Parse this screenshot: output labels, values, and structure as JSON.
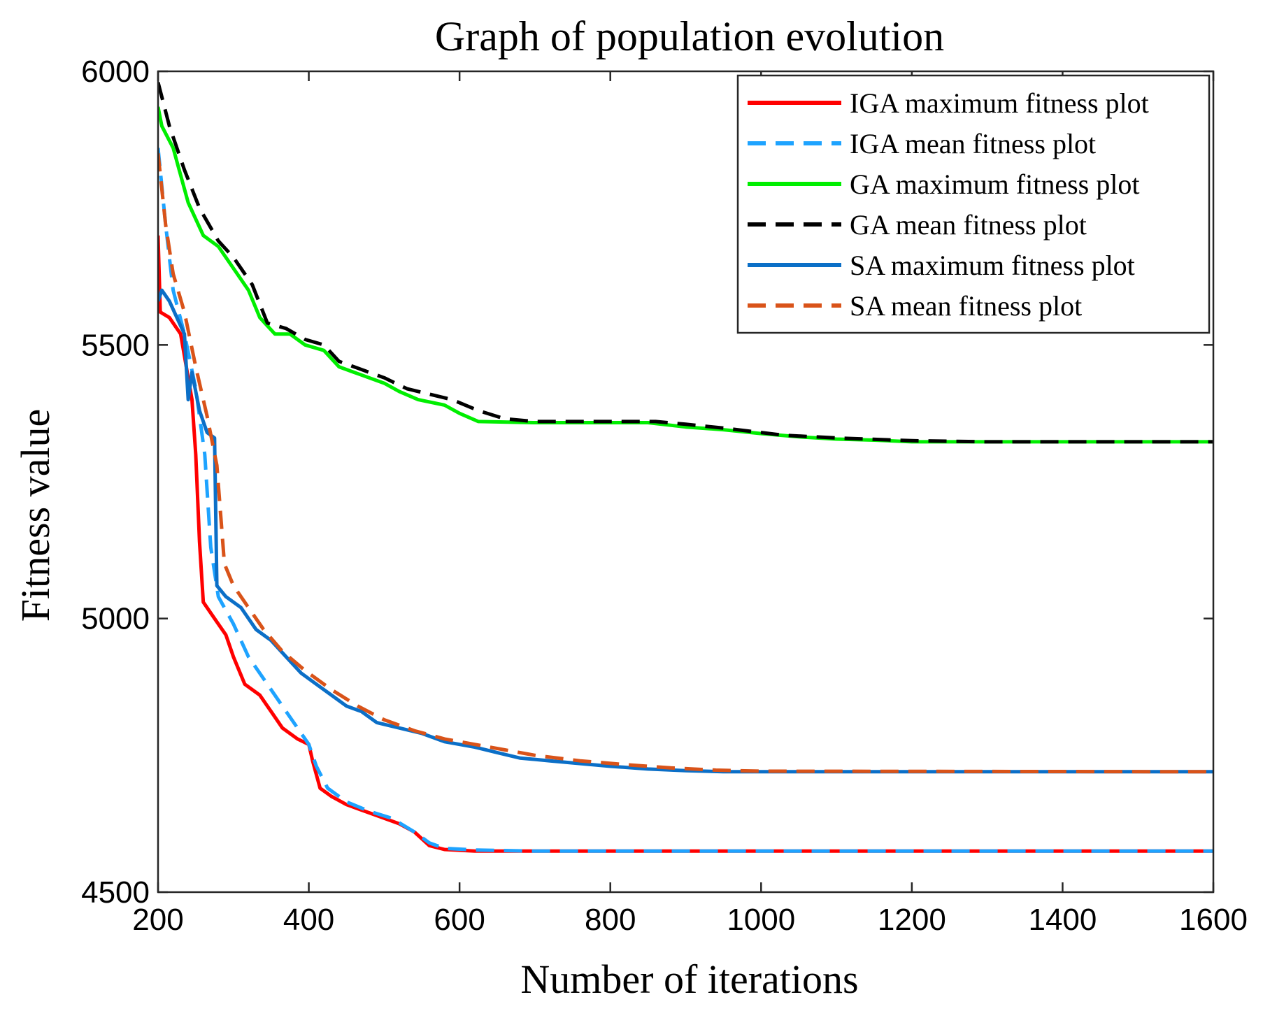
{
  "chart_data": {
    "type": "line",
    "title": "Graph of population evolution",
    "xlabel": "Number of iterations",
    "ylabel": "Fitness value",
    "xlim": [
      200,
      1600
    ],
    "ylim": [
      4500,
      6000
    ],
    "xticks": [
      200,
      400,
      600,
      800,
      1000,
      1200,
      1400,
      1600
    ],
    "yticks": [
      4500,
      5000,
      5500,
      6000
    ],
    "xtick_labels": [
      "200",
      "400",
      "600",
      "800",
      "1000",
      "1200",
      "1400",
      "1600"
    ],
    "ytick_labels": [
      "4500",
      "5000",
      "5500",
      "6000"
    ],
    "grid": false,
    "legend_position": "top-right",
    "series": [
      {
        "name": "IGA maximum fitness plot",
        "color": "#ff0000",
        "style": "solid",
        "points": [
          [
            200,
            5700
          ],
          [
            203,
            5560
          ],
          [
            215,
            5550
          ],
          [
            230,
            5520
          ],
          [
            245,
            5400
          ],
          [
            250,
            5300
          ],
          [
            255,
            5140
          ],
          [
            260,
            5030
          ],
          [
            275,
            5000
          ],
          [
            290,
            4970
          ],
          [
            300,
            4930
          ],
          [
            315,
            4880
          ],
          [
            335,
            4860
          ],
          [
            350,
            4830
          ],
          [
            365,
            4800
          ],
          [
            385,
            4780
          ],
          [
            400,
            4770
          ],
          [
            405,
            4740
          ],
          [
            415,
            4690
          ],
          [
            430,
            4675
          ],
          [
            450,
            4660
          ],
          [
            470,
            4650
          ],
          [
            490,
            4640
          ],
          [
            520,
            4625
          ],
          [
            540,
            4610
          ],
          [
            560,
            4585
          ],
          [
            580,
            4578
          ],
          [
            620,
            4575
          ],
          [
            700,
            4575
          ],
          [
            1000,
            4575
          ],
          [
            1600,
            4575
          ]
        ]
      },
      {
        "name": "IGA mean fitness plot",
        "color": "#1ea3ff",
        "style": "dashed",
        "points": [
          [
            200,
            5860
          ],
          [
            210,
            5720
          ],
          [
            220,
            5600
          ],
          [
            235,
            5520
          ],
          [
            250,
            5420
          ],
          [
            262,
            5300
          ],
          [
            270,
            5130
          ],
          [
            280,
            5040
          ],
          [
            300,
            4990
          ],
          [
            320,
            4930
          ],
          [
            345,
            4880
          ],
          [
            365,
            4840
          ],
          [
            385,
            4800
          ],
          [
            400,
            4770
          ],
          [
            410,
            4730
          ],
          [
            425,
            4690
          ],
          [
            450,
            4665
          ],
          [
            480,
            4648
          ],
          [
            510,
            4635
          ],
          [
            540,
            4610
          ],
          [
            560,
            4590
          ],
          [
            580,
            4580
          ],
          [
            620,
            4577
          ],
          [
            700,
            4575
          ],
          [
            1600,
            4575
          ]
        ]
      },
      {
        "name": "GA maximum fitness plot",
        "color": "#00ee00",
        "style": "solid",
        "points": [
          [
            200,
            5935
          ],
          [
            205,
            5900
          ],
          [
            220,
            5860
          ],
          [
            240,
            5760
          ],
          [
            260,
            5700
          ],
          [
            280,
            5680
          ],
          [
            300,
            5640
          ],
          [
            320,
            5600
          ],
          [
            335,
            5550
          ],
          [
            355,
            5520
          ],
          [
            375,
            5520
          ],
          [
            395,
            5500
          ],
          [
            420,
            5490
          ],
          [
            440,
            5460
          ],
          [
            460,
            5450
          ],
          [
            480,
            5440
          ],
          [
            500,
            5430
          ],
          [
            520,
            5415
          ],
          [
            545,
            5400
          ],
          [
            580,
            5390
          ],
          [
            600,
            5375
          ],
          [
            625,
            5360
          ],
          [
            700,
            5358
          ],
          [
            800,
            5358
          ],
          [
            850,
            5358
          ],
          [
            900,
            5350
          ],
          [
            950,
            5345
          ],
          [
            1000,
            5338
          ],
          [
            1050,
            5332
          ],
          [
            1100,
            5328
          ],
          [
            1150,
            5326
          ],
          [
            1200,
            5323
          ],
          [
            1300,
            5323
          ],
          [
            1600,
            5323
          ]
        ]
      },
      {
        "name": "GA mean fitness plot",
        "color": "#000000",
        "style": "dashed",
        "points": [
          [
            200,
            5980
          ],
          [
            215,
            5900
          ],
          [
            235,
            5820
          ],
          [
            255,
            5750
          ],
          [
            280,
            5690
          ],
          [
            300,
            5660
          ],
          [
            325,
            5610
          ],
          [
            345,
            5540
          ],
          [
            370,
            5530
          ],
          [
            395,
            5510
          ],
          [
            420,
            5500
          ],
          [
            440,
            5470
          ],
          [
            460,
            5460
          ],
          [
            480,
            5450
          ],
          [
            500,
            5440
          ],
          [
            530,
            5420
          ],
          [
            560,
            5410
          ],
          [
            590,
            5400
          ],
          [
            625,
            5380
          ],
          [
            660,
            5365
          ],
          [
            700,
            5360
          ],
          [
            800,
            5360
          ],
          [
            860,
            5360
          ],
          [
            900,
            5355
          ],
          [
            950,
            5348
          ],
          [
            1000,
            5340
          ],
          [
            1030,
            5335
          ],
          [
            1100,
            5330
          ],
          [
            1200,
            5325
          ],
          [
            1300,
            5323
          ],
          [
            1600,
            5323
          ]
        ]
      },
      {
        "name": "SA maximum fitness plot",
        "color": "#0b6fc7",
        "style": "solid",
        "points": [
          [
            200,
            5580
          ],
          [
            205,
            5600
          ],
          [
            215,
            5580
          ],
          [
            225,
            5550
          ],
          [
            235,
            5520
          ],
          [
            240,
            5400
          ],
          [
            245,
            5450
          ],
          [
            255,
            5380
          ],
          [
            265,
            5340
          ],
          [
            275,
            5330
          ],
          [
            278,
            5060
          ],
          [
            290,
            5040
          ],
          [
            310,
            5020
          ],
          [
            330,
            4980
          ],
          [
            350,
            4960
          ],
          [
            370,
            4930
          ],
          [
            390,
            4900
          ],
          [
            410,
            4880
          ],
          [
            430,
            4860
          ],
          [
            450,
            4840
          ],
          [
            470,
            4830
          ],
          [
            490,
            4810
          ],
          [
            520,
            4800
          ],
          [
            550,
            4790
          ],
          [
            580,
            4775
          ],
          [
            620,
            4765
          ],
          [
            650,
            4755
          ],
          [
            680,
            4745
          ],
          [
            720,
            4740
          ],
          [
            760,
            4735
          ],
          [
            800,
            4730
          ],
          [
            850,
            4725
          ],
          [
            900,
            4722
          ],
          [
            950,
            4720
          ],
          [
            1000,
            4720
          ],
          [
            1600,
            4720
          ]
        ]
      },
      {
        "name": "SA mean fitness plot",
        "color": "#d95319",
        "style": "dashed",
        "points": [
          [
            200,
            5850
          ],
          [
            210,
            5720
          ],
          [
            220,
            5630
          ],
          [
            235,
            5560
          ],
          [
            250,
            5460
          ],
          [
            265,
            5370
          ],
          [
            278,
            5280
          ],
          [
            288,
            5100
          ],
          [
            300,
            5060
          ],
          [
            320,
            5020
          ],
          [
            340,
            4980
          ],
          [
            365,
            4940
          ],
          [
            395,
            4905
          ],
          [
            430,
            4870
          ],
          [
            465,
            4840
          ],
          [
            500,
            4815
          ],
          [
            540,
            4795
          ],
          [
            580,
            4780
          ],
          [
            620,
            4770
          ],
          [
            660,
            4760
          ],
          [
            700,
            4750
          ],
          [
            760,
            4740
          ],
          [
            820,
            4733
          ],
          [
            880,
            4727
          ],
          [
            940,
            4723
          ],
          [
            1000,
            4721
          ],
          [
            1600,
            4720
          ]
        ]
      }
    ]
  }
}
